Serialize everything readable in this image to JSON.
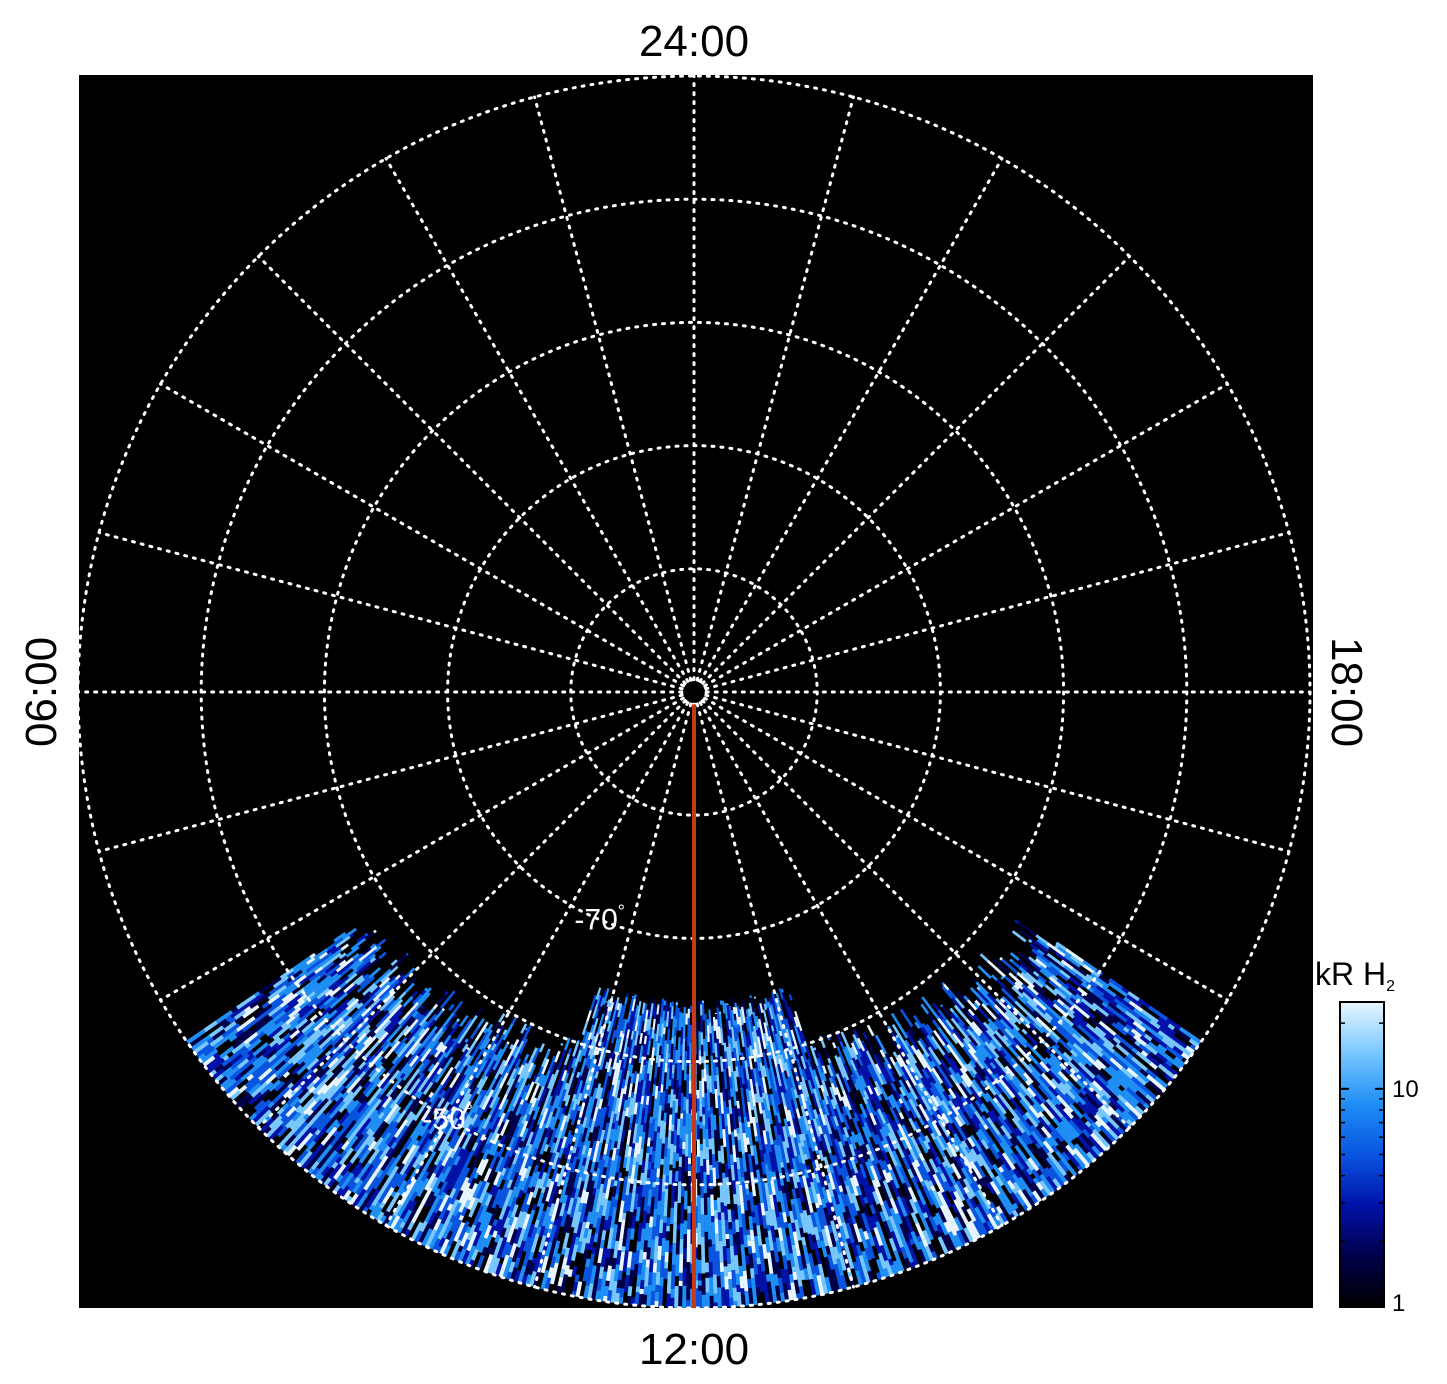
{
  "chart_data": {
    "type": "heatmap",
    "projection": "polar",
    "title": "",
    "local_time_labels": {
      "top": "24:00",
      "bottom": "12:00",
      "left": "06:00",
      "right": "18:00"
    },
    "latitude_circles_deg": [
      -89,
      -80,
      -70,
      -60,
      -50,
      -40
    ],
    "latitude_labels": [
      {
        "text": "-70",
        "lat": -70,
        "local_time_hours": 13.5
      },
      {
        "text": "-50",
        "lat": -50,
        "local_time_hours": 14.0
      }
    ],
    "degree_symbol": "°",
    "meridian_step_hours": 1,
    "grid": true,
    "grid_color": "#ffffff",
    "background_color": "#000000",
    "reference_meridian": {
      "local_time_hours": 12,
      "from_lat": -89,
      "to_lat": -40,
      "color": "#c8391a"
    },
    "emission_coverage": {
      "lat_min": -62,
      "lat_max": -40,
      "local_time_start_hours": 8.3,
      "local_time_end_hours": 15.7,
      "inner_band_lat": -65,
      "inner_band_local_time_start_hours": 10.8,
      "inner_band_local_time_end_hours": 13.2
    },
    "colorbar": {
      "title": "kR H",
      "title_subscript": "2",
      "scale": "log",
      "range": [
        1,
        25
      ],
      "tick_labels": [
        "1",
        "10"
      ],
      "tick_values": [
        1,
        10
      ],
      "colormap": [
        "#000000",
        "#00004a",
        "#0012a8",
        "#0a55e0",
        "#1f8ef5",
        "#78c8ff",
        "#e8f6ff"
      ]
    }
  }
}
